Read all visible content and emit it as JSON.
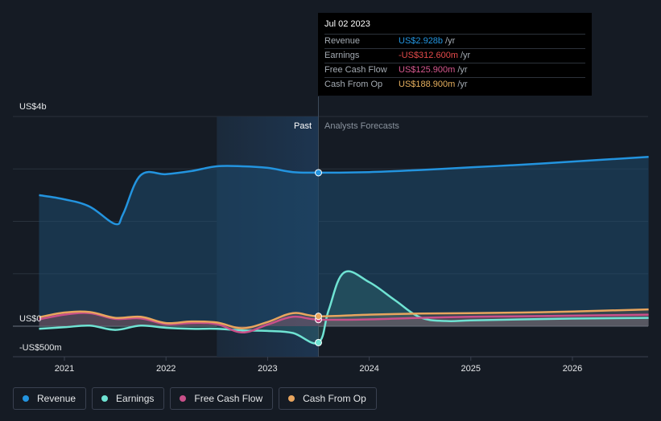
{
  "tooltip": {
    "date": "Jul 02 2023",
    "rows": [
      {
        "label": "Revenue",
        "value": "US$2.928b",
        "unit": "/yr",
        "color": "#2394df"
      },
      {
        "label": "Earnings",
        "value": "-US$312.600m",
        "unit": "/yr",
        "color": "#e64b4b"
      },
      {
        "label": "Free Cash Flow",
        "value": "US$125.900m",
        "unit": "/yr",
        "color": "#d7588f"
      },
      {
        "label": "Cash From Op",
        "value": "US$188.900m",
        "unit": "/yr",
        "color": "#e6b05e"
      }
    ]
  },
  "labels": {
    "past": "Past",
    "forecast": "Analysts Forecasts",
    "y_top": "US$4b",
    "y_zero": "US$0",
    "y_bottom": "-US$500m"
  },
  "legend": [
    {
      "label": "Revenue",
      "color": "#2394df"
    },
    {
      "label": "Earnings",
      "color": "#6fe3d3"
    },
    {
      "label": "Free Cash Flow",
      "color": "#c9508a"
    },
    {
      "label": "Cash From Op",
      "color": "#e8a55e"
    }
  ],
  "chart_data": {
    "type": "line",
    "x_ticks": [
      "2021",
      "2022",
      "2023",
      "2024",
      "2025",
      "2026"
    ],
    "y_unit": "US$ millions",
    "ylim": [
      -500,
      4000
    ],
    "xlim": [
      2020.0,
      2026.75
    ],
    "past_end": 2023.5,
    "highlight_start": 2022.5,
    "grid": true,
    "legend_position": "bottom-left",
    "series": [
      {
        "name": "Revenue",
        "color": "#2394df",
        "x": [
          2020.75,
          2021.0,
          2021.25,
          2021.5,
          2021.58,
          2021.75,
          2022.0,
          2022.25,
          2022.5,
          2022.75,
          2023.0,
          2023.25,
          2023.5,
          2024.0,
          2024.5,
          2025.0,
          2025.5,
          2026.0,
          2026.75
        ],
        "values": [
          2500,
          2420,
          2280,
          1950,
          2150,
          2880,
          2900,
          2960,
          3050,
          3050,
          3020,
          2940,
          2928,
          2940,
          2980,
          3030,
          3080,
          3140,
          3230
        ]
      },
      {
        "name": "Earnings",
        "color": "#6fe3d3",
        "x": [
          2020.75,
          2021.0,
          2021.25,
          2021.5,
          2021.75,
          2022.0,
          2022.25,
          2022.5,
          2022.75,
          2023.0,
          2023.25,
          2023.5,
          2023.6,
          2023.75,
          2024.0,
          2024.25,
          2024.5,
          2024.75,
          2025.0,
          2025.5,
          2026.0,
          2026.75
        ],
        "values": [
          -50,
          -20,
          10,
          -70,
          10,
          -30,
          -50,
          -50,
          -80,
          -90,
          -130,
          -312.6,
          300,
          1020,
          840,
          500,
          170,
          100,
          110,
          130,
          145,
          160
        ]
      },
      {
        "name": "Free Cash Flow",
        "color": "#c9508a",
        "x": [
          2020.75,
          2021.0,
          2021.25,
          2021.5,
          2021.75,
          2022.0,
          2022.25,
          2022.5,
          2022.75,
          2023.0,
          2023.25,
          2023.5,
          2024.0,
          2024.5,
          2025.0,
          2025.5,
          2026.0,
          2026.75
        ],
        "values": [
          130,
          220,
          250,
          140,
          150,
          40,
          60,
          40,
          -120,
          30,
          180,
          125.9,
          130,
          160,
          180,
          190,
          200,
          220
        ]
      },
      {
        "name": "Cash From Op",
        "color": "#e8a55e",
        "x": [
          2020.75,
          2021.0,
          2021.25,
          2021.5,
          2021.75,
          2022.0,
          2022.25,
          2022.5,
          2022.75,
          2023.0,
          2023.25,
          2023.5,
          2024.0,
          2024.5,
          2025.0,
          2025.5,
          2026.0,
          2026.75
        ],
        "values": [
          170,
          260,
          270,
          160,
          180,
          60,
          90,
          70,
          -40,
          80,
          250,
          188.9,
          220,
          240,
          250,
          260,
          280,
          320
        ]
      }
    ]
  }
}
